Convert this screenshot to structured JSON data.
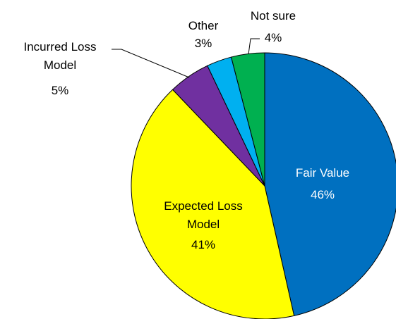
{
  "chart_data": {
    "type": "pie",
    "categories": [
      "Fair Value",
      "Expected Loss Model",
      "Incurred Loss Model",
      "Other",
      "Not sure"
    ],
    "values": [
      46,
      41,
      5,
      3,
      4
    ],
    "value_labels": [
      "46%",
      "41%",
      "5%",
      "3%",
      "4%"
    ],
    "colors": [
      "#0070c0",
      "#ffff00",
      "#7030a0",
      "#00b0f0",
      "#00b050"
    ]
  }
}
